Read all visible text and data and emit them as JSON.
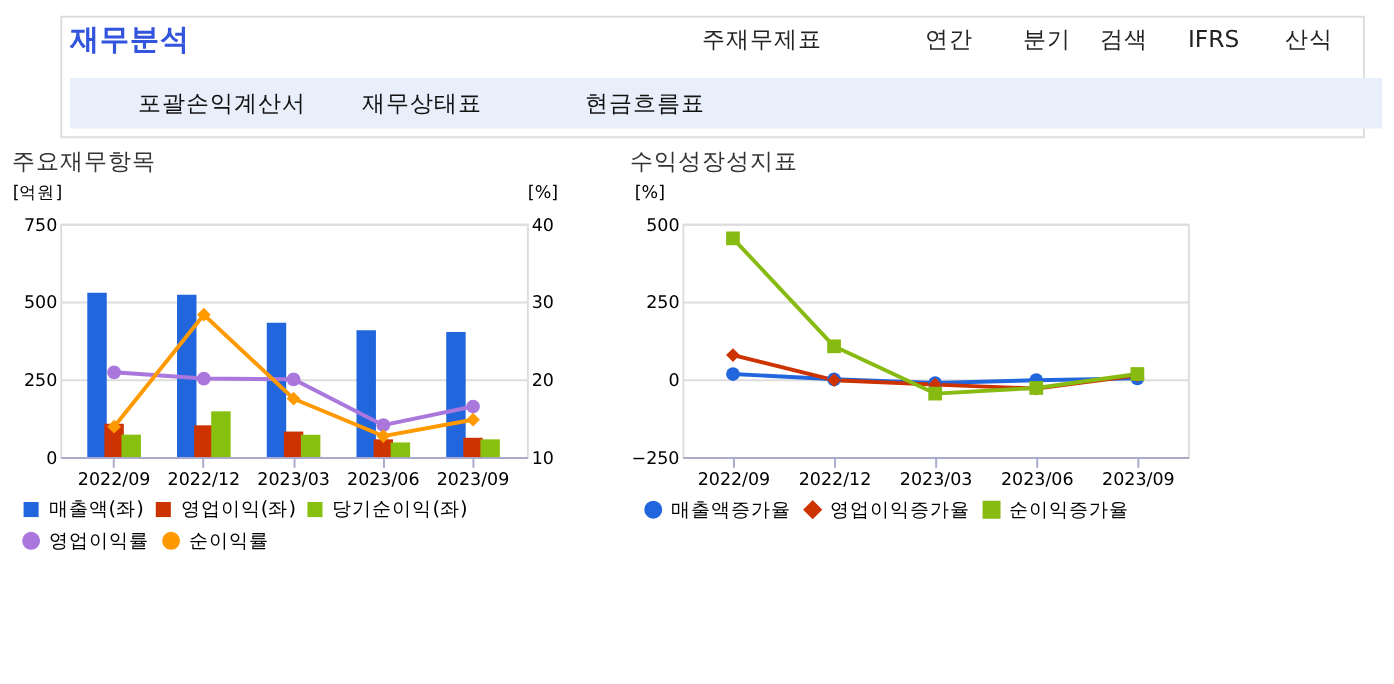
{
  "chart_data": [
    {
      "type": "other",
      "title": "재무분석",
      "annotations": [
        "주재무제표",
        "연간",
        "분기",
        "검색",
        "IFRS",
        "산식",
        "포괄손익계산서",
        "재무상태표",
        "현금흐름표"
      ]
    },
    {
      "type": "bar",
      "title": "주요재무항목",
      "categories": [
        "2022/09",
        "2022/12",
        "2023/03",
        "2023/06",
        "2023/09"
      ],
      "ylabel": "[억원]",
      "y2label": "[%]",
      "ylim": [
        0,
        750
      ],
      "yticks": [
        0,
        250,
        500,
        750
      ],
      "y2lim": [
        10,
        40
      ],
      "y2ticks": [
        10,
        20,
        30,
        40
      ],
      "grid": "y",
      "legend": "bottom",
      "series": [
        {
          "name": "매출액(좌)",
          "color": "#2266dd",
          "values": [
            528,
            522,
            432,
            408,
            402
          ]
        },
        {
          "name": "영업이익(좌)",
          "color": "#cc3300",
          "values": [
            107,
            102,
            82,
            57,
            62
          ]
        },
        {
          "name": "당기순이익(좌)",
          "color": "#88c010",
          "values": [
            72,
            147,
            72,
            47,
            57
          ]
        },
        {
          "name": "영업이익률",
          "type": "line",
          "axis": "y2",
          "marker": "circle",
          "color": "#aa77dd",
          "values": [
            20.9,
            20.1,
            20.0,
            14.1,
            16.5
          ]
        },
        {
          "name": "순이익률",
          "type": "line",
          "axis": "y2",
          "marker": "diamond",
          "color": "#ff9900",
          "values": [
            13.9,
            28.3,
            17.5,
            12.7,
            14.8
          ]
        }
      ]
    },
    {
      "type": "line",
      "title": "수익성장성지표",
      "categories": [
        "2022/09",
        "2022/12",
        "2023/03",
        "2023/06",
        "2023/09"
      ],
      "ylabel": "[%]",
      "ylim": [
        -250,
        500
      ],
      "yticks": [
        -250,
        0,
        250,
        500
      ],
      "grid": "y",
      "legend": "bottom",
      "series": [
        {
          "name": "매출액증가율",
          "marker": "circle",
          "color": "#2266dd",
          "values": [
            17,
            0,
            -12,
            -3,
            3
          ]
        },
        {
          "name": "영업이익증가율",
          "marker": "diamond",
          "color": "#cc3300",
          "values": [
            78,
            -3,
            -17,
            -30,
            13
          ]
        },
        {
          "name": "순이익증가율",
          "marker": "square",
          "color": "#88bb11",
          "values": [
            453,
            106,
            -46,
            -28,
            17
          ]
        }
      ]
    }
  ]
}
